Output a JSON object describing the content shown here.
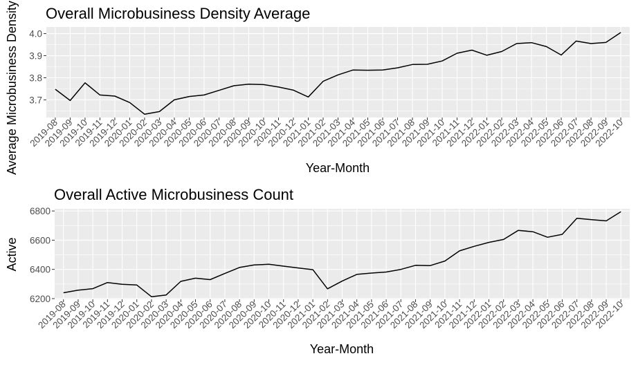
{
  "chart_data": [
    {
      "type": "line",
      "title": "Overall Microbusiness Density Average",
      "xlabel": "Year-Month",
      "ylabel": "Average Microbusiness Density",
      "ylim": [
        3.62,
        4.03
      ],
      "yticks": [
        3.7,
        3.8,
        3.9,
        4.0
      ],
      "ytick_labels": [
        "3.7",
        "3.8",
        "3.9",
        "4.0"
      ],
      "grid": true,
      "categories": [
        "2019-08",
        "2019-09",
        "2019-10",
        "2019-11",
        "2019-12",
        "2020-01",
        "2020-02",
        "2020-03",
        "2020-04",
        "2020-05",
        "2020-06",
        "2020-07",
        "2020-08",
        "2020-09",
        "2020-10",
        "2020-11",
        "2020-12",
        "2021-01",
        "2021-02",
        "2021-03",
        "2021-04",
        "2021-05",
        "2021-06",
        "2021-07",
        "2021-08",
        "2021-09",
        "2021-10",
        "2021-11",
        "2021-12",
        "2022-01",
        "2022-02",
        "2022-03",
        "2022-04",
        "2022-05",
        "2022-06",
        "2022-07",
        "2022-08",
        "2022-09",
        "2022-10"
      ],
      "values": [
        3.748,
        3.697,
        3.777,
        3.722,
        3.717,
        3.688,
        3.635,
        3.647,
        3.7,
        3.715,
        3.722,
        3.743,
        3.764,
        3.771,
        3.769,
        3.758,
        3.744,
        3.713,
        3.784,
        3.813,
        3.835,
        3.834,
        3.835,
        3.845,
        3.86,
        3.861,
        3.876,
        3.911,
        3.925,
        3.902,
        3.919,
        3.955,
        3.959,
        3.941,
        3.903,
        3.966,
        3.955,
        3.96,
        4.005
      ]
    },
    {
      "type": "line",
      "title": "Overall Active Microbusiness Count",
      "xlabel": "Year-Month",
      "ylabel": "Active",
      "ylim": [
        6195,
        6815
      ],
      "yticks": [
        6200,
        6400,
        6600,
        6800
      ],
      "ytick_labels": [
        "6200",
        "6400",
        "6600",
        "6800"
      ],
      "grid": true,
      "categories": [
        "2019-08",
        "2019-09",
        "2019-10",
        "2019-11",
        "2019-12",
        "2020-01",
        "2020-02",
        "2020-03",
        "2020-04",
        "2020-05",
        "2020-06",
        "2020-07",
        "2020-08",
        "2020-09",
        "2020-10",
        "2020-11",
        "2020-12",
        "2021-01",
        "2021-02",
        "2021-03",
        "2021-04",
        "2021-05",
        "2021-06",
        "2021-07",
        "2021-08",
        "2021-09",
        "2021-10",
        "2021-11",
        "2021-12",
        "2022-01",
        "2022-02",
        "2022-03",
        "2022-04",
        "2022-05",
        "2022-06",
        "2022-07",
        "2022-08",
        "2022-09",
        "2022-10"
      ],
      "values": [
        6240,
        6258,
        6268,
        6310,
        6298,
        6293,
        6213,
        6225,
        6318,
        6340,
        6330,
        6372,
        6413,
        6430,
        6435,
        6422,
        6410,
        6398,
        6267,
        6320,
        6366,
        6375,
        6382,
        6400,
        6428,
        6426,
        6457,
        6527,
        6558,
        6585,
        6605,
        6667,
        6658,
        6620,
        6640,
        6750,
        6740,
        6732,
        6795
      ]
    }
  ]
}
